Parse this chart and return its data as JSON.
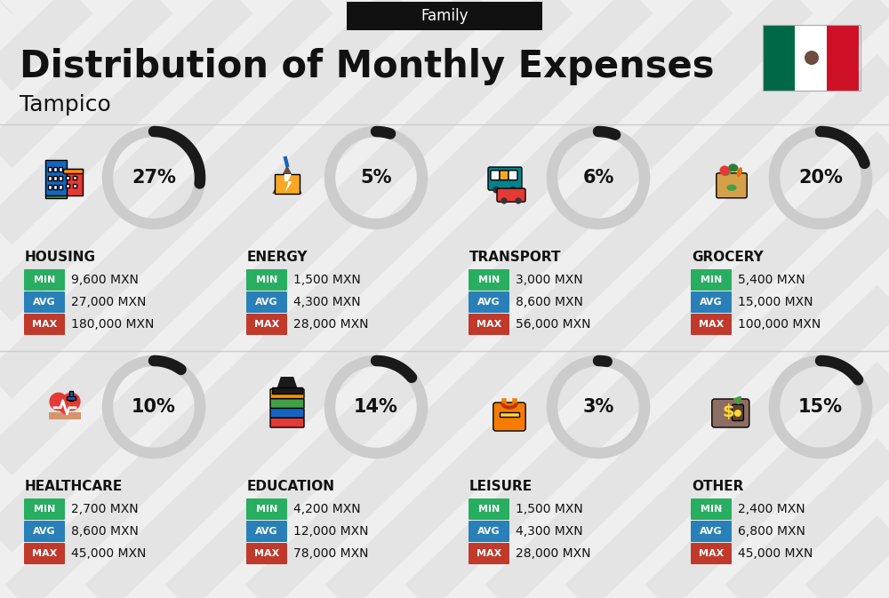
{
  "title": "Distribution of Monthly Expenses",
  "subtitle": "Tampico",
  "tag": "Family",
  "bg_color": "#efefef",
  "categories": [
    {
      "name": "HOUSING",
      "pct": 27,
      "min": "9,600 MXN",
      "avg": "27,000 MXN",
      "max": "180,000 MXN",
      "col": 0,
      "row": 0
    },
    {
      "name": "ENERGY",
      "pct": 5,
      "min": "1,500 MXN",
      "avg": "4,300 MXN",
      "max": "28,000 MXN",
      "col": 1,
      "row": 0
    },
    {
      "name": "TRANSPORT",
      "pct": 6,
      "min": "3,000 MXN",
      "avg": "8,600 MXN",
      "max": "56,000 MXN",
      "col": 2,
      "row": 0
    },
    {
      "name": "GROCERY",
      "pct": 20,
      "min": "5,400 MXN",
      "avg": "15,000 MXN",
      "max": "100,000 MXN",
      "col": 3,
      "row": 0
    },
    {
      "name": "HEALTHCARE",
      "pct": 10,
      "min": "2,700 MXN",
      "avg": "8,600 MXN",
      "max": "45,000 MXN",
      "col": 0,
      "row": 1
    },
    {
      "name": "EDUCATION",
      "pct": 14,
      "min": "4,200 MXN",
      "avg": "12,000 MXN",
      "max": "78,000 MXN",
      "col": 1,
      "row": 1
    },
    {
      "name": "LEISURE",
      "pct": 3,
      "min": "1,500 MXN",
      "avg": "4,300 MXN",
      "max": "28,000 MXN",
      "col": 2,
      "row": 1
    },
    {
      "name": "OTHER",
      "pct": 15,
      "min": "2,400 MXN",
      "avg": "6,800 MXN",
      "max": "45,000 MXN",
      "col": 3,
      "row": 1
    }
  ],
  "color_min": "#27ae60",
  "color_avg": "#2980b9",
  "color_max": "#c0392b",
  "text_color": "#111111",
  "tag_bg": "#111111",
  "tag_fg": "#ffffff",
  "donut_bg": "#cccccc",
  "donut_fg": "#1a1a1a",
  "stripe_color": "#dcdcdc",
  "icon_colors": {
    "HOUSING": [
      "#1565c0",
      "#e53935",
      "#ff8f00"
    ],
    "ENERGY": [
      "#f9a825",
      "#0277bd"
    ],
    "TRANSPORT": [
      "#00838f",
      "#e53935"
    ],
    "GROCERY": [
      "#ef6c00",
      "#43a047"
    ],
    "HEALTHCARE": [
      "#e53935",
      "#1565c0"
    ],
    "EDUCATION": [
      "#1565c0",
      "#43a047",
      "#ff8f00"
    ],
    "LEISURE": [
      "#f57c00",
      "#fdd835"
    ],
    "OTHER": [
      "#795548",
      "#43a047"
    ]
  }
}
